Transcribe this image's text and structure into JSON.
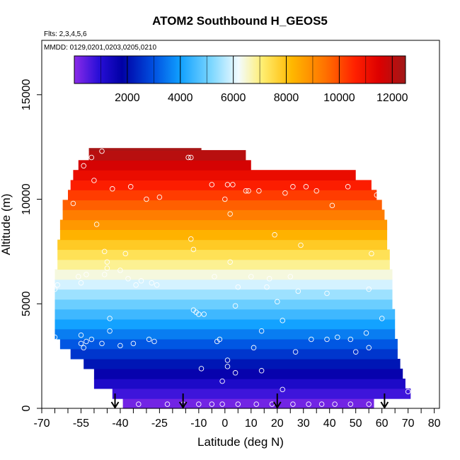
{
  "chart_data": {
    "type": "heatmap",
    "title": "ATOM2 Southbound H_GEOS5",
    "subtitle_flights": "Flts: 2,3,4,5,6",
    "subtitle_dates": "MMDD: 0129,0201,0203,0205,0210",
    "xlabel": "Latitude (deg N)",
    "ylabel": "Altitude (m)",
    "xlim": [
      -70,
      82
    ],
    "ylim": [
      0,
      17600
    ],
    "x_ticks": [
      -70,
      -55,
      -40,
      -25,
      -10,
      0,
      10,
      20,
      30,
      40,
      50,
      60,
      70,
      80
    ],
    "x_tick_labels": [
      "-70",
      "-55",
      "-40",
      "-25",
      "-10",
      "0",
      "10",
      "20",
      "30",
      "40",
      "50",
      "60",
      "70",
      "80"
    ],
    "x_minor_ticks": [
      -65,
      -60,
      -50,
      -45,
      -35,
      -30,
      -20,
      -15,
      -5,
      5,
      15,
      25,
      35,
      45,
      55,
      65,
      75
    ],
    "y_ticks": [
      0,
      5000,
      10000,
      15000
    ],
    "y_tick_labels": [
      "0",
      "5000",
      "10000",
      "15000"
    ],
    "colorbar": {
      "range": [
        0,
        12500
      ],
      "ticks": [
        2000,
        4000,
        6000,
        8000,
        10000,
        12000
      ],
      "tick_labels": [
        "2000",
        "4000",
        "6000",
        "8000",
        "10000",
        "12000"
      ],
      "color_stops": [
        {
          "v": 0,
          "c": "#8b2be8"
        },
        {
          "v": 900,
          "c": "#2a0fd8"
        },
        {
          "v": 1800,
          "c": "#0000a5"
        },
        {
          "v": 3000,
          "c": "#0050e0"
        },
        {
          "v": 4000,
          "c": "#10a0ff"
        },
        {
          "v": 5200,
          "c": "#7fd8ff"
        },
        {
          "v": 6200,
          "c": "#f2fbff"
        },
        {
          "v": 7100,
          "c": "#ffee70"
        },
        {
          "v": 8200,
          "c": "#ffb800"
        },
        {
          "v": 9500,
          "c": "#ff7000"
        },
        {
          "v": 10600,
          "c": "#ff2000"
        },
        {
          "v": 11500,
          "c": "#dd0000"
        },
        {
          "v": 12500,
          "c": "#a01818"
        }
      ]
    },
    "curtain_bands": [
      {
        "alt_bottom": 0,
        "alt_top": 470,
        "lat_start": -39,
        "lat_end": 57
      },
      {
        "alt_bottom": 470,
        "alt_top": 950,
        "lat_start": -43,
        "lat_end": 71
      },
      {
        "alt_bottom": 950,
        "alt_top": 1420,
        "lat_start": -50,
        "lat_end": 69
      },
      {
        "alt_bottom": 1420,
        "alt_top": 1900,
        "lat_start": -50,
        "lat_end": 68
      },
      {
        "alt_bottom": 1900,
        "alt_top": 2370,
        "lat_start": -54,
        "lat_end": 67
      },
      {
        "alt_bottom": 2370,
        "alt_top": 2850,
        "lat_start": -59,
        "lat_end": 66
      },
      {
        "alt_bottom": 2850,
        "alt_top": 3320,
        "lat_start": -63,
        "lat_end": 66
      },
      {
        "alt_bottom": 3320,
        "alt_top": 3800,
        "lat_start": -65,
        "lat_end": 65
      },
      {
        "alt_bottom": 3800,
        "alt_top": 4270,
        "lat_start": -65,
        "lat_end": 65
      },
      {
        "alt_bottom": 4270,
        "alt_top": 4750,
        "lat_start": -65,
        "lat_end": 65
      },
      {
        "alt_bottom": 4750,
        "alt_top": 5220,
        "lat_start": -65,
        "lat_end": 64
      },
      {
        "alt_bottom": 5220,
        "alt_top": 5700,
        "lat_start": -65,
        "lat_end": 64
      },
      {
        "alt_bottom": 5700,
        "alt_top": 6170,
        "lat_start": -65,
        "lat_end": 64
      },
      {
        "alt_bottom": 6170,
        "alt_top": 6650,
        "lat_start": -65,
        "lat_end": 64
      },
      {
        "alt_bottom": 6650,
        "alt_top": 7120,
        "lat_start": -64,
        "lat_end": 63
      },
      {
        "alt_bottom": 7120,
        "alt_top": 7600,
        "lat_start": -64,
        "lat_end": 63
      },
      {
        "alt_bottom": 7600,
        "alt_top": 8070,
        "lat_start": -64,
        "lat_end": 62
      },
      {
        "alt_bottom": 8070,
        "alt_top": 8550,
        "lat_start": -63,
        "lat_end": 62
      },
      {
        "alt_bottom": 8550,
        "alt_top": 9020,
        "lat_start": -63,
        "lat_end": 62
      },
      {
        "alt_bottom": 9020,
        "alt_top": 9500,
        "lat_start": -62,
        "lat_end": 61
      },
      {
        "alt_bottom": 9500,
        "alt_top": 9970,
        "lat_start": -62,
        "lat_end": 60
      },
      {
        "alt_bottom": 9970,
        "alt_top": 10450,
        "lat_start": -60,
        "lat_end": 58
      },
      {
        "alt_bottom": 10450,
        "alt_top": 10920,
        "lat_start": -59,
        "lat_end": 56
      },
      {
        "alt_bottom": 10920,
        "alt_top": 11400,
        "lat_start": -58,
        "lat_end": 50
      },
      {
        "alt_bottom": 11400,
        "alt_top": 11870,
        "lat_start": -56,
        "lat_end": 10
      },
      {
        "alt_bottom": 11870,
        "alt_top": 12350,
        "lat_start": -52,
        "lat_end": 8
      },
      {
        "alt_bottom": 12350,
        "alt_top": 12450,
        "lat_start": -52,
        "lat_end": -9
      }
    ],
    "flight_points": [
      [
        -65,
        5700
      ],
      [
        -64,
        5900
      ],
      [
        -65,
        3400
      ],
      [
        -58,
        9800
      ],
      [
        -56,
        6300
      ],
      [
        -55,
        6000
      ],
      [
        -55,
        3500
      ],
      [
        -55,
        3100
      ],
      [
        -54,
        2900
      ],
      [
        -53,
        3200
      ],
      [
        -51,
        3300
      ],
      [
        -54,
        11600
      ],
      [
        -53,
        6400
      ],
      [
        -51,
        12000
      ],
      [
        -50,
        10900
      ],
      [
        -49,
        8800
      ],
      [
        -47,
        3100
      ],
      [
        -47,
        12300
      ],
      [
        -46,
        7500
      ],
      [
        -46,
        6400
      ],
      [
        -45,
        7000
      ],
      [
        -45,
        6700
      ],
      [
        -44,
        3700
      ],
      [
        -44,
        4300
      ],
      [
        -43,
        10500
      ],
      [
        -40,
        6600
      ],
      [
        -40,
        3000
      ],
      [
        -38,
        7400
      ],
      [
        -37,
        6200
      ],
      [
        -36,
        10600
      ],
      [
        -35,
        3100
      ],
      [
        -34,
        5900
      ],
      [
        -32,
        6100
      ],
      [
        -30,
        10000
      ],
      [
        -29,
        3300
      ],
      [
        -28,
        6000
      ],
      [
        -27,
        3200
      ],
      [
        -26,
        5900
      ],
      [
        -25,
        10100
      ],
      [
        -14,
        12000
      ],
      [
        -13,
        12000
      ],
      [
        -13,
        8100
      ],
      [
        -12,
        7600
      ],
      [
        -12,
        4700
      ],
      [
        -11,
        4600
      ],
      [
        -10,
        4500
      ],
      [
        -9,
        1900
      ],
      [
        -8,
        4500
      ],
      [
        -5,
        10700
      ],
      [
        -4,
        6300
      ],
      [
        -3,
        3200
      ],
      [
        -2,
        3300
      ],
      [
        -1,
        1300
      ],
      [
        0,
        10000
      ],
      [
        1,
        10700
      ],
      [
        1,
        2300
      ],
      [
        1,
        2000
      ],
      [
        2,
        7000
      ],
      [
        2,
        9300
      ],
      [
        3,
        10700
      ],
      [
        4,
        4900
      ],
      [
        4,
        1700
      ],
      [
        5,
        5800
      ],
      [
        8,
        10400
      ],
      [
        9,
        10400
      ],
      [
        10,
        6300
      ],
      [
        11,
        2900
      ],
      [
        13,
        10400
      ],
      [
        14,
        3700
      ],
      [
        14,
        1800
      ],
      [
        16,
        5800
      ],
      [
        17,
        6200
      ],
      [
        19,
        8300
      ],
      [
        20,
        5100
      ],
      [
        22,
        4200
      ],
      [
        22,
        900
      ],
      [
        23,
        10300
      ],
      [
        25,
        6300
      ],
      [
        26,
        10600
      ],
      [
        27,
        2700
      ],
      [
        28,
        5600
      ],
      [
        29,
        7800
      ],
      [
        31,
        10600
      ],
      [
        33,
        3300
      ],
      [
        35,
        10400
      ],
      [
        39,
        5500
      ],
      [
        39,
        3300
      ],
      [
        41,
        9700
      ],
      [
        43,
        3400
      ],
      [
        47,
        10600
      ],
      [
        48,
        3300
      ],
      [
        50,
        2700
      ],
      [
        54,
        3600
      ],
      [
        55,
        2900
      ],
      [
        55,
        5700
      ],
      [
        56,
        7400
      ],
      [
        58,
        10200
      ],
      [
        60,
        4300
      ],
      [
        70,
        800
      ],
      [
        -40,
        200
      ],
      [
        -33,
        200
      ],
      [
        -22,
        200
      ],
      [
        -16,
        200
      ],
      [
        -10,
        200
      ],
      [
        -5,
        200
      ],
      [
        -1,
        200
      ],
      [
        5,
        200
      ],
      [
        12,
        200
      ],
      [
        18,
        200
      ],
      [
        26,
        200
      ],
      [
        32,
        200
      ],
      [
        37,
        200
      ],
      [
        42,
        200
      ],
      [
        48,
        200
      ],
      [
        55,
        200
      ]
    ],
    "arrow_lats": [
      -42,
      -16,
      20,
      61
    ]
  }
}
